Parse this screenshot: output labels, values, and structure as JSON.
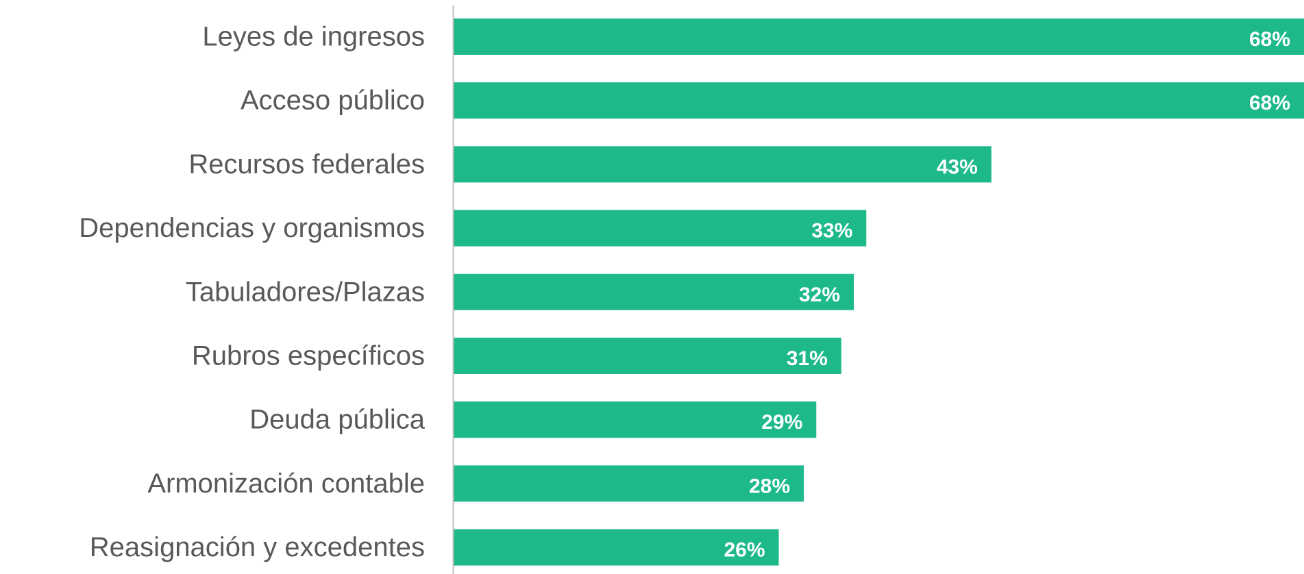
{
  "chart_data": {
    "type": "bar",
    "orientation": "horizontal",
    "categories": [
      "Leyes de ingresos",
      "Acceso público",
      "Recursos federales",
      "Dependencias y organismos",
      "Tabuladores/Plazas",
      "Rubros específicos",
      "Deuda pública",
      "Armonización contable",
      "Reasignación y excedentes"
    ],
    "values": [
      68,
      68,
      43,
      33,
      32,
      31,
      29,
      28,
      26
    ],
    "data_labels": [
      "68%",
      "68%",
      "43%",
      "33%",
      "32%",
      "31%",
      "29%",
      "28%",
      "26%"
    ],
    "xlim": [
      0,
      68
    ],
    "grid": false,
    "legend": "none",
    "bar_color": "#1DB98B",
    "axis_color": "#BFBFBF",
    "label_color": "#595959"
  }
}
